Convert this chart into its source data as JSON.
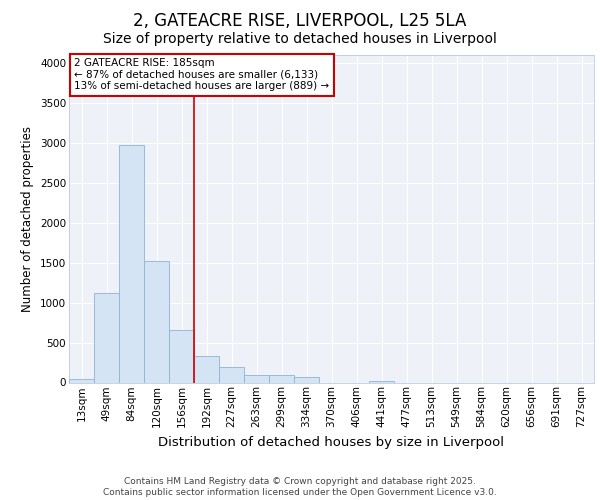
{
  "title1": "2, GATEACRE RISE, LIVERPOOL, L25 5LA",
  "title2": "Size of property relative to detached houses in Liverpool",
  "xlabel": "Distribution of detached houses by size in Liverpool",
  "ylabel": "Number of detached properties",
  "categories": [
    "13sqm",
    "49sqm",
    "84sqm",
    "120sqm",
    "156sqm",
    "192sqm",
    "227sqm",
    "263sqm",
    "299sqm",
    "334sqm",
    "370sqm",
    "406sqm",
    "441sqm",
    "477sqm",
    "513sqm",
    "549sqm",
    "584sqm",
    "620sqm",
    "656sqm",
    "691sqm",
    "727sqm"
  ],
  "values": [
    50,
    1125,
    2975,
    1525,
    660,
    330,
    200,
    100,
    100,
    65,
    0,
    0,
    25,
    0,
    0,
    0,
    0,
    0,
    0,
    0,
    0
  ],
  "bar_color": "#d4e4f4",
  "bar_edgecolor": "#8ab4d4",
  "vline_x": 4.5,
  "vline_color": "#cc0000",
  "annotation_line1": "2 GATEACRE RISE: 185sqm",
  "annotation_line2": "← 87% of detached houses are smaller (6,133)",
  "annotation_line3": "13% of semi-detached houses are larger (889) →",
  "annotation_box_color": "#cc0000",
  "ylim": [
    0,
    4100
  ],
  "yticks": [
    0,
    500,
    1000,
    1500,
    2000,
    2500,
    3000,
    3500,
    4000
  ],
  "grid_color": "#e8eef4",
  "background_color": "#eef2f8",
  "footer1": "Contains HM Land Registry data © Crown copyright and database right 2025.",
  "footer2": "Contains public sector information licensed under the Open Government Licence v3.0.",
  "title1_fontsize": 12,
  "title2_fontsize": 10,
  "xlabel_fontsize": 9.5,
  "ylabel_fontsize": 8.5,
  "tick_fontsize": 7.5,
  "annotation_fontsize": 7.5,
  "footer_fontsize": 6.5
}
